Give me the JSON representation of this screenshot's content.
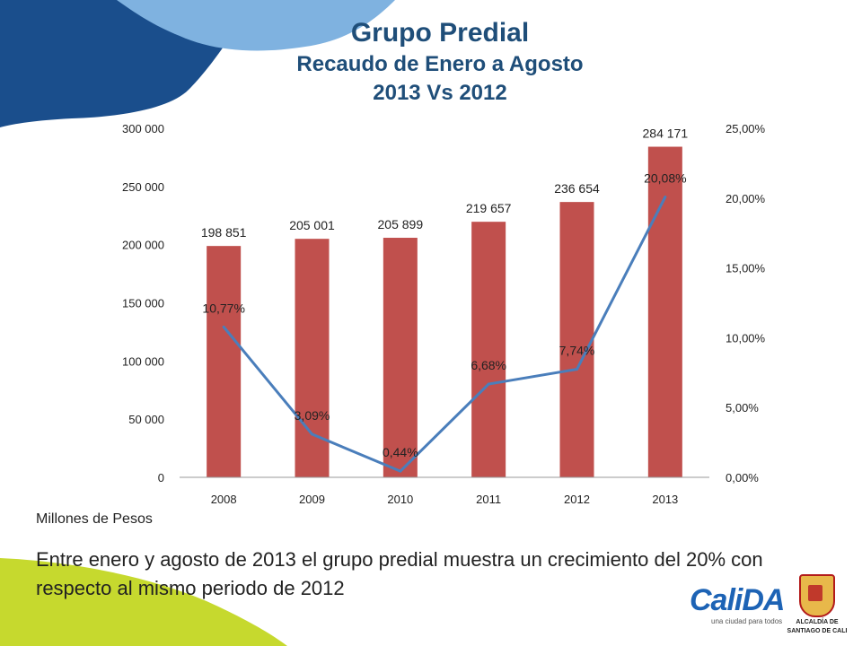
{
  "title": {
    "line1": "Grupo Predial",
    "line2": "Recaudo de Enero a Agosto",
    "line3": "2013 Vs 2012"
  },
  "chart_data": {
    "type": "bar",
    "categories": [
      "2008",
      "2009",
      "2010",
      "2011",
      "2012",
      "2013"
    ],
    "series": [
      {
        "type": "bar",
        "axis": "left",
        "values": [
          198851,
          205001,
          205899,
          219657,
          236654,
          284171
        ],
        "labels": [
          "198 851",
          "205 001",
          "205 899",
          "219 657",
          "236 654",
          "284 171"
        ],
        "color": "#c0504d"
      },
      {
        "type": "line",
        "axis": "right",
        "values": [
          10.77,
          3.09,
          0.44,
          6.68,
          7.74,
          20.08
        ],
        "labels": [
          "10,77%",
          "3,09%",
          "0,44%",
          "6,68%",
          "7,74%",
          "20,08%"
        ],
        "color": "#4a7ebb"
      }
    ],
    "y_left": {
      "min": 0,
      "max": 300000,
      "ticks": [
        0,
        50000,
        100000,
        150000,
        200000,
        250000,
        300000
      ],
      "tick_labels": [
        "0",
        "50 000",
        "100 000",
        "150 000",
        "200 000",
        "250 000",
        "300 000"
      ]
    },
    "y_right": {
      "min": 0,
      "max": 25,
      "ticks": [
        0,
        5,
        10,
        15,
        20,
        25
      ],
      "tick_labels": [
        "0,00%",
        "5,00%",
        "10,00%",
        "15,00%",
        "20,00%",
        "25,00%"
      ]
    },
    "grid": false,
    "legend": "none"
  },
  "unit_note": "Millones de Pesos",
  "summary": "Entre enero y agosto de 2013 el grupo predial muestra un crecimiento del 20% con respecto al mismo periodo de 2012",
  "logos": {
    "calida": "CaliDA",
    "calida_tagline": "una ciudad para todos",
    "alcaldia_line1": "ALCALDÍA DE",
    "alcaldia_line2": "SANTIAGO DE CALI"
  },
  "colors": {
    "deco_dark": "#1a4e8c",
    "deco_light": "#7fb2e0",
    "deco_green": "#c6d92e",
    "title": "#1f4e79"
  }
}
